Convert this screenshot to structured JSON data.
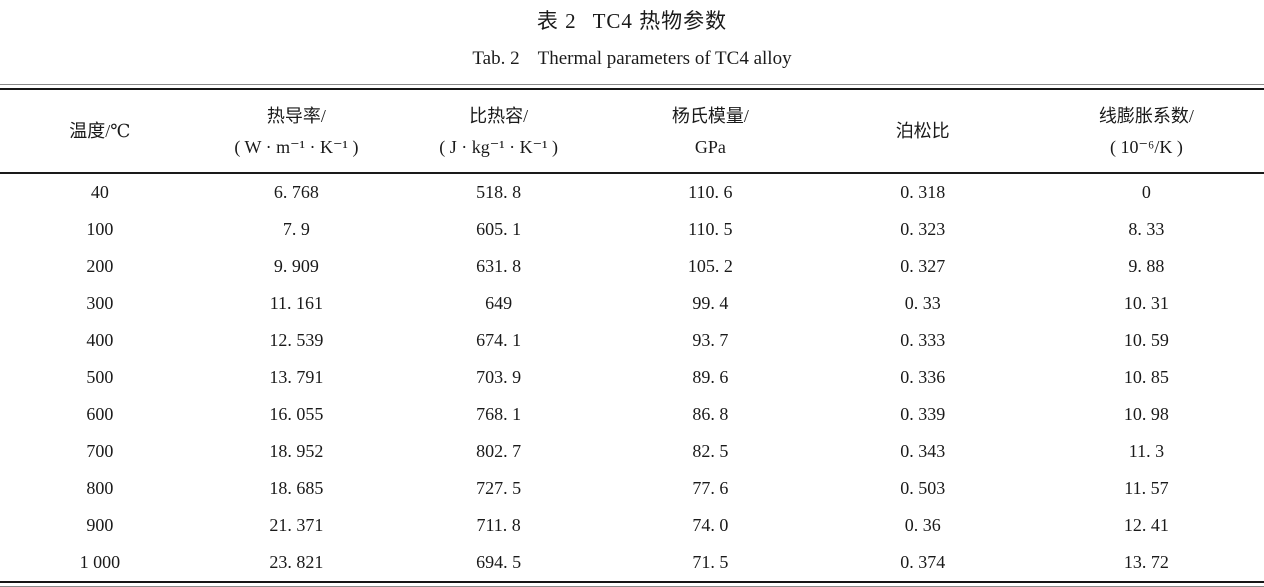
{
  "captions": {
    "zh_label": "表 2",
    "zh_title": "TC4 热物参数",
    "en_label": "Tab. 2",
    "en_title": "Thermal parameters of TC4 alloy"
  },
  "table": {
    "columns": [
      {
        "line1": "温度/℃",
        "line2": ""
      },
      {
        "line1": "热导率/",
        "line2": "( W · m⁻¹ · K⁻¹ )"
      },
      {
        "line1": "比热容/",
        "line2": "( J · kg⁻¹ · K⁻¹ )"
      },
      {
        "line1": "杨氏模量/",
        "line2": "GPa"
      },
      {
        "line1": "泊松比",
        "line2": ""
      },
      {
        "line1": "线膨胀系数/",
        "line2": "( 10⁻⁶/K )"
      }
    ],
    "rows": [
      [
        "40",
        "6. 768",
        "518. 8",
        "110. 6",
        "0. 318",
        "0"
      ],
      [
        "100",
        "7. 9",
        "605. 1",
        "110. 5",
        "0. 323",
        "8. 33"
      ],
      [
        "200",
        "9. 909",
        "631. 8",
        "105. 2",
        "0. 327",
        "9. 88"
      ],
      [
        "300",
        "11. 161",
        "649",
        "99. 4",
        "0. 33",
        "10. 31"
      ],
      [
        "400",
        "12. 539",
        "674. 1",
        "93. 7",
        "0. 333",
        "10. 59"
      ],
      [
        "500",
        "13. 791",
        "703. 9",
        "89. 6",
        "0. 336",
        "10. 85"
      ],
      [
        "600",
        "16. 055",
        "768. 1",
        "86. 8",
        "0. 339",
        "10. 98"
      ],
      [
        "700",
        "18. 952",
        "802. 7",
        "82. 5",
        "0. 343",
        "11. 3"
      ],
      [
        "800",
        "18. 685",
        "727. 5",
        "77. 6",
        "0. 503",
        "11. 57"
      ],
      [
        "900",
        "21. 371",
        "711. 8",
        "74. 0",
        "0. 36",
        "12. 41"
      ],
      [
        "1 000",
        "23. 821",
        "694. 5",
        "71. 5",
        "0. 374",
        "13. 72"
      ]
    ]
  },
  "chart_data": {
    "type": "table",
    "title": "表 2 TC4 热物参数 / Tab. 2 Thermal parameters of TC4 alloy",
    "columns": [
      "温度/℃",
      "热导率/(W·m⁻¹·K⁻¹)",
      "比热容/(J·kg⁻¹·K⁻¹)",
      "杨氏模量/GPa",
      "泊松比",
      "线膨胀系数/(10⁻⁶/K)"
    ],
    "rows": [
      [
        40,
        6.768,
        518.8,
        110.6,
        0.318,
        0
      ],
      [
        100,
        7.9,
        605.1,
        110.5,
        0.323,
        8.33
      ],
      [
        200,
        9.909,
        631.8,
        105.2,
        0.327,
        9.88
      ],
      [
        300,
        11.161,
        649,
        99.4,
        0.33,
        10.31
      ],
      [
        400,
        12.539,
        674.1,
        93.7,
        0.333,
        10.59
      ],
      [
        500,
        13.791,
        703.9,
        89.6,
        0.336,
        10.85
      ],
      [
        600,
        16.055,
        768.1,
        86.8,
        0.339,
        10.98
      ],
      [
        700,
        18.952,
        802.7,
        82.5,
        0.343,
        11.3
      ],
      [
        800,
        18.685,
        727.5,
        77.6,
        0.503,
        11.57
      ],
      [
        900,
        21.371,
        711.8,
        74.0,
        0.36,
        12.41
      ],
      [
        1000,
        23.821,
        694.5,
        71.5,
        0.374,
        13.72
      ]
    ]
  }
}
